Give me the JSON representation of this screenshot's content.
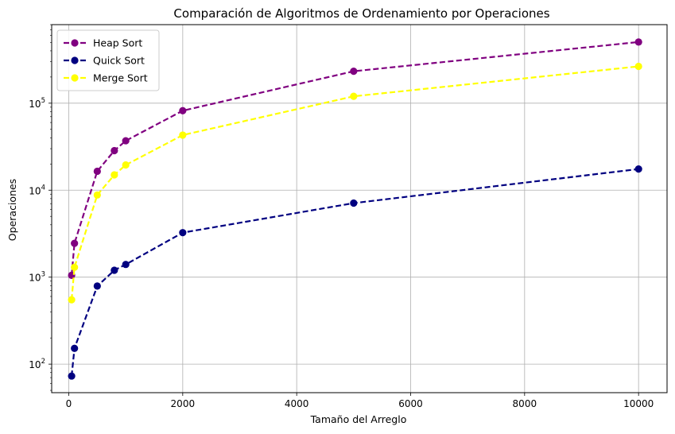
{
  "chart_data": {
    "type": "line",
    "title": "Comparación de Algoritmos de Ordenamiento por Operaciones",
    "xlabel": "Tamaño del Arreglo",
    "ylabel": "Operaciones",
    "x": [
      50,
      100,
      500,
      800,
      1000,
      2000,
      5000,
      10000
    ],
    "series": [
      {
        "name": "Heap Sort",
        "color": "#800080",
        "values": [
          1050,
          2450,
          16500,
          28500,
          37000,
          82000,
          233000,
          505000
        ]
      },
      {
        "name": "Quick Sort",
        "color": "#000080",
        "values": [
          73,
          152,
          790,
          1200,
          1400,
          3250,
          7100,
          17500
        ]
      },
      {
        "name": "Merge Sort",
        "color": "#ffff00",
        "values": [
          550,
          1300,
          8800,
          15000,
          19500,
          43000,
          120000,
          265000
        ]
      }
    ],
    "xlim": [
      -300,
      10500
    ],
    "ylim": [
      47,
      800000
    ],
    "yscale": "log",
    "xticks": [
      0,
      2000,
      4000,
      6000,
      8000,
      10000
    ],
    "xtick_labels": [
      "0",
      "2000",
      "4000",
      "6000",
      "8000",
      "10000"
    ],
    "yticks": [
      100,
      1000,
      10000,
      100000
    ],
    "ytick_labels": [
      {
        "base": "10",
        "exp": "2"
      },
      {
        "base": "10",
        "exp": "3"
      },
      {
        "base": "10",
        "exp": "4"
      },
      {
        "base": "10",
        "exp": "5"
      }
    ],
    "grid": true,
    "legend": "upper-left",
    "line_style": "dashed",
    "marker": "circle"
  }
}
